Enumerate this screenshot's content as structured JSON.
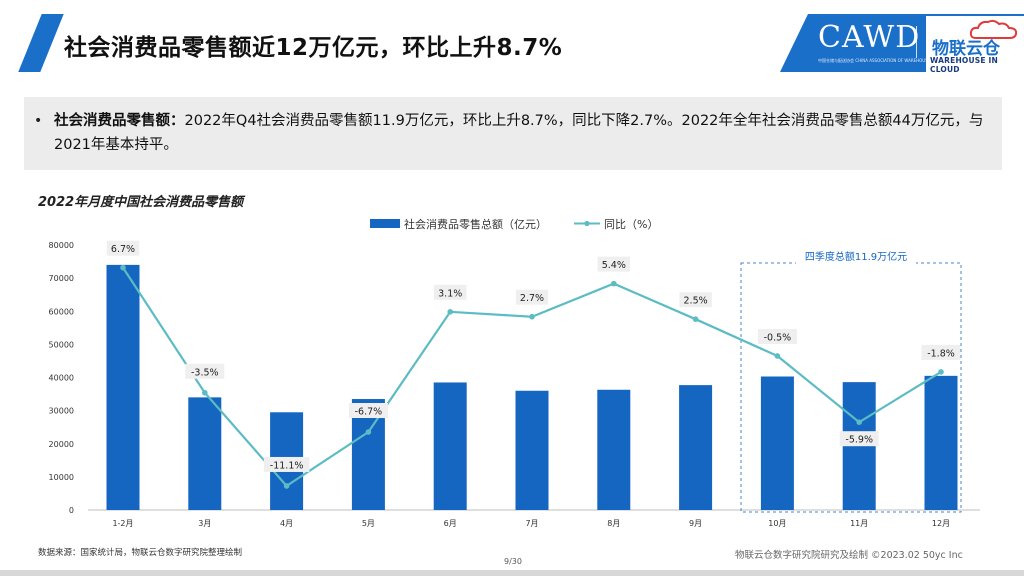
{
  "header": {
    "title": "社会消费品零售额近12万亿元，环比上升8.7%",
    "logo_cawd": "CAWD",
    "logo_cawd_sub": "中国仓储与配送协会 CHINA ASSOCIATION OF WAREHOUSING AND DISTRIBUTION",
    "logo_cn": "物联云仓",
    "logo_en": "WAREHOUSE IN CLOUD"
  },
  "summary": {
    "bullet": "•",
    "label": "社会消费品零售额：",
    "text": "2022年Q4社会消费品零售额11.9万亿元，环比上升8.7%，同比下降2.7%。2022年全年社会消费品零售总额44万亿元，与2021年基本持平。"
  },
  "chart_data": {
    "type": "bar",
    "title": "2022年月度中国社会消费品零售额",
    "categories": [
      "1-2月",
      "3月",
      "4月",
      "5月",
      "6月",
      "7月",
      "8月",
      "9月",
      "10月",
      "11月",
      "12月"
    ],
    "ylim": [
      0,
      80000
    ],
    "yticks": [
      "0",
      "10000",
      "20000",
      "30000",
      "40000",
      "50000",
      "60000",
      "70000",
      "80000"
    ],
    "grid": false,
    "legend_position": "top",
    "series": [
      {
        "name": "社会消费品零售总额（亿元）",
        "type": "bar",
        "color": "#1566c0",
        "values": [
          74000,
          34000,
          29500,
          33500,
          38500,
          36000,
          36300,
          37700,
          40300,
          38600,
          40500
        ]
      },
      {
        "name": "同比（%）",
        "type": "line",
        "color": "#5bbcc4",
        "values": [
          6.7,
          -3.5,
          -11.1,
          -6.7,
          3.1,
          2.7,
          5.4,
          2.5,
          -0.5,
          -5.9,
          -1.8
        ],
        "labels": [
          "6.7%",
          "-3.5%",
          "-11.1%",
          "-6.7%",
          "3.1%",
          "2.7%",
          "5.4%",
          "2.5%",
          "-0.5%",
          "-5.9%",
          "-1.8%"
        ]
      }
    ],
    "annotation": "四季度总额11.9万亿元"
  },
  "footer": {
    "source": "数据来源：国家统计局，物联云仓数字研究院整理绘制",
    "page": "9/30",
    "credit": "物联云仓数字研究院研究及绘制    ©2023.02  50yc Inc"
  }
}
